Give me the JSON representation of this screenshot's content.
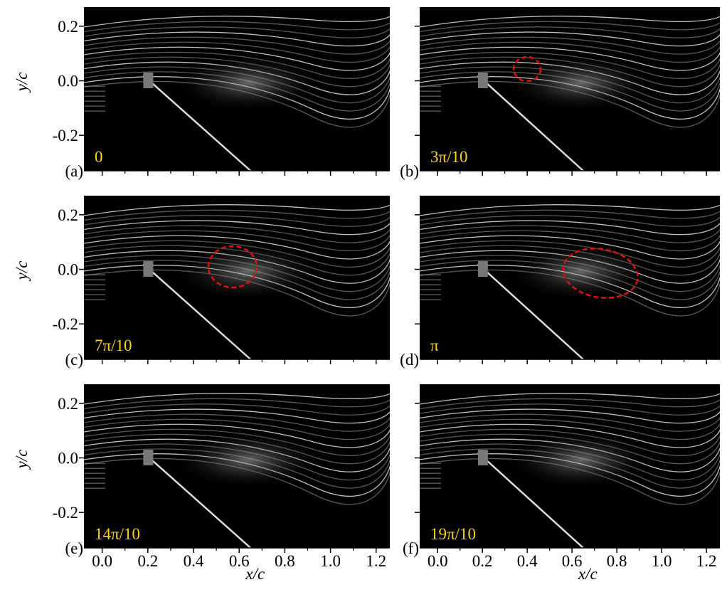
{
  "axes": {
    "xlabel": "x/c",
    "ylabel": "y/c",
    "xlim": [
      -0.08,
      1.26
    ],
    "ylim": [
      -0.33,
      0.27
    ],
    "xticks": [
      {
        "value": 0,
        "label": "0.0"
      },
      0.2,
      0.4,
      0.6,
      0.8,
      {
        "value": 1,
        "label": "1.0"
      },
      1.2
    ],
    "yticks": [
      0.2,
      {
        "value": 0,
        "label": "0.0"
      },
      -0.2
    ]
  },
  "panels": [
    {
      "label": "(a)",
      "phase": "0"
    },
    {
      "label": "(b)",
      "phase": "3π/10"
    },
    {
      "label": "(c)",
      "phase": "7π/10"
    },
    {
      "label": "(d)",
      "phase": "π"
    },
    {
      "label": "(e)",
      "phase": "14π/10"
    },
    {
      "label": "(f)",
      "phase": "19π/10"
    }
  ]
}
